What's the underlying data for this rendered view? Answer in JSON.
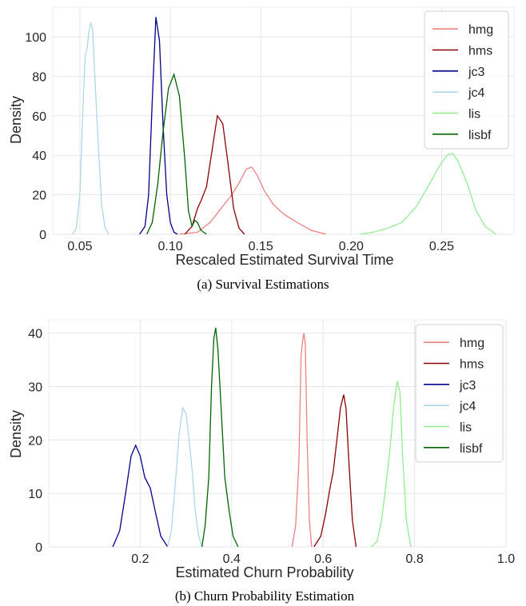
{
  "chart_data": [
    {
      "type": "line",
      "kind": "kde-density",
      "caption": "(a) Survival Estimations",
      "xlabel": "Rescaled Estimated Survival Time",
      "ylabel": "Density",
      "xlim": [
        0.035,
        0.29
      ],
      "ylim": [
        0,
        115
      ],
      "xticks": [
        0.05,
        0.1,
        0.15,
        0.2,
        0.25
      ],
      "xtick_labels": [
        "0.05",
        "0.10",
        "0.15",
        "0.20",
        "0.25"
      ],
      "yticks": [
        0,
        20,
        40,
        60,
        80,
        100
      ],
      "ytick_labels": [
        "0",
        "20",
        "40",
        "60",
        "80",
        "100"
      ],
      "grid": true,
      "legend_position": "top-right",
      "series": [
        {
          "name": "hmg",
          "color": "#f08080",
          "points": [
            [
              0.105,
              0
            ],
            [
              0.115,
              1
            ],
            [
              0.122,
              6
            ],
            [
              0.128,
              13
            ],
            [
              0.134,
              20
            ],
            [
              0.138,
              26
            ],
            [
              0.142,
              33
            ],
            [
              0.145,
              34
            ],
            [
              0.148,
              30
            ],
            [
              0.152,
              22
            ],
            [
              0.157,
              15
            ],
            [
              0.163,
              10
            ],
            [
              0.17,
              6
            ],
            [
              0.178,
              2
            ],
            [
              0.186,
              0
            ]
          ]
        },
        {
          "name": "hms",
          "color": "#8b0000",
          "points": [
            [
              0.108,
              0
            ],
            [
              0.112,
              4
            ],
            [
              0.115,
              13
            ],
            [
              0.117,
              17
            ],
            [
              0.12,
              24
            ],
            [
              0.123,
              42
            ],
            [
              0.126,
              60
            ],
            [
              0.129,
              56
            ],
            [
              0.132,
              35
            ],
            [
              0.135,
              13
            ],
            [
              0.138,
              3
            ],
            [
              0.141,
              0
            ]
          ]
        },
        {
          "name": "jc3",
          "color": "#00008b",
          "points": [
            [
              0.083,
              0
            ],
            [
              0.086,
              4
            ],
            [
              0.088,
              20
            ],
            [
              0.09,
              68
            ],
            [
              0.092,
              110
            ],
            [
              0.094,
              98
            ],
            [
              0.096,
              55
            ],
            [
              0.098,
              20
            ],
            [
              0.1,
              6
            ],
            [
              0.102,
              1
            ],
            [
              0.104,
              0
            ]
          ]
        },
        {
          "name": "jc4",
          "color": "#add8e6",
          "points": [
            [
              0.046,
              0
            ],
            [
              0.048,
              3
            ],
            [
              0.05,
              20
            ],
            [
              0.052,
              72
            ],
            [
              0.053,
              91
            ],
            [
              0.054,
              94
            ],
            [
              0.055,
              103
            ],
            [
              0.056,
              107
            ],
            [
              0.057,
              104
            ],
            [
              0.058,
              85
            ],
            [
              0.06,
              48
            ],
            [
              0.062,
              15
            ],
            [
              0.064,
              3
            ],
            [
              0.066,
              0
            ]
          ]
        },
        {
          "name": "lis",
          "color": "#90ee90",
          "points": [
            [
              0.205,
              0
            ],
            [
              0.212,
              1
            ],
            [
              0.22,
              3
            ],
            [
              0.228,
              6
            ],
            [
              0.236,
              14
            ],
            [
              0.243,
              25
            ],
            [
              0.249,
              35
            ],
            [
              0.253,
              40
            ],
            [
              0.256,
              41
            ],
            [
              0.259,
              37
            ],
            [
              0.264,
              26
            ],
            [
              0.269,
              12
            ],
            [
              0.274,
              4
            ],
            [
              0.28,
              0
            ]
          ]
        },
        {
          "name": "lisbf",
          "color": "#006400",
          "points": [
            [
              0.087,
              0
            ],
            [
              0.09,
              6
            ],
            [
              0.093,
              25
            ],
            [
              0.096,
              52
            ],
            [
              0.099,
              74
            ],
            [
              0.102,
              81
            ],
            [
              0.105,
              70
            ],
            [
              0.108,
              38
            ],
            [
              0.11,
              12
            ],
            [
              0.112,
              4
            ],
            [
              0.1135,
              7
            ],
            [
              0.115,
              6
            ],
            [
              0.117,
              2
            ],
            [
              0.12,
              0
            ]
          ]
        }
      ]
    },
    {
      "type": "line",
      "kind": "kde-density",
      "caption": "(b) Churn Probability Estimation",
      "xlabel": "Estimated Churn Probability",
      "ylabel": "Density",
      "xlim": [
        0.0,
        1.0
      ],
      "ylim": [
        0,
        42.5
      ],
      "xticks": [
        0.2,
        0.4,
        0.6,
        0.8,
        1.0
      ],
      "xtick_labels": [
        "0.2",
        "0.4",
        "0.6",
        "0.8",
        "1.0"
      ],
      "yticks": [
        0,
        10,
        20,
        30,
        40
      ],
      "ytick_labels": [
        "0",
        "10",
        "20",
        "30",
        "40"
      ],
      "grid": true,
      "legend_position": "top-right",
      "series": [
        {
          "name": "hmg",
          "color": "#f08080",
          "points": [
            [
              0.532,
              0
            ],
            [
              0.54,
              4
            ],
            [
              0.547,
              16
            ],
            [
              0.552,
              36
            ],
            [
              0.556,
              39
            ],
            [
              0.558,
              40
            ],
            [
              0.561,
              38
            ],
            [
              0.565,
              20
            ],
            [
              0.57,
              5
            ],
            [
              0.575,
              0
            ]
          ]
        },
        {
          "name": "hms",
          "color": "#8b0000",
          "points": [
            [
              0.58,
              0
            ],
            [
              0.595,
              2
            ],
            [
              0.605,
              6
            ],
            [
              0.615,
              11
            ],
            [
              0.622,
              14
            ],
            [
              0.63,
              20
            ],
            [
              0.638,
              26
            ],
            [
              0.645,
              28.5
            ],
            [
              0.65,
              26
            ],
            [
              0.657,
              15
            ],
            [
              0.664,
              5
            ],
            [
              0.672,
              0
            ]
          ]
        },
        {
          "name": "jc3",
          "color": "#00008b",
          "points": [
            [
              0.14,
              0
            ],
            [
              0.155,
              3
            ],
            [
              0.168,
              10
            ],
            [
              0.18,
              17
            ],
            [
              0.19,
              19
            ],
            [
              0.2,
              17
            ],
            [
              0.21,
              13
            ],
            [
              0.222,
              11
            ],
            [
              0.232,
              7
            ],
            [
              0.245,
              2
            ],
            [
              0.26,
              0
            ]
          ]
        },
        {
          "name": "jc4",
          "color": "#add8e6",
          "points": [
            [
              0.26,
              0
            ],
            [
              0.268,
              3
            ],
            [
              0.276,
              11
            ],
            [
              0.285,
              21
            ],
            [
              0.293,
              26
            ],
            [
              0.3,
              25
            ],
            [
              0.307,
              20
            ],
            [
              0.314,
              14
            ],
            [
              0.32,
              7
            ],
            [
              0.328,
              2
            ],
            [
              0.335,
              0
            ]
          ]
        },
        {
          "name": "lis",
          "color": "#90ee90",
          "points": [
            [
              0.705,
              0
            ],
            [
              0.718,
              1
            ],
            [
              0.728,
              5
            ],
            [
              0.738,
              12
            ],
            [
              0.746,
              18
            ],
            [
              0.754,
              26
            ],
            [
              0.762,
              31
            ],
            [
              0.768,
              29
            ],
            [
              0.774,
              17
            ],
            [
              0.782,
              5
            ],
            [
              0.792,
              0
            ]
          ]
        },
        {
          "name": "lisbf",
          "color": "#006400",
          "points": [
            [
              0.335,
              0
            ],
            [
              0.342,
              4
            ],
            [
              0.35,
              13
            ],
            [
              0.356,
              30
            ],
            [
              0.361,
              39
            ],
            [
              0.365,
              41
            ],
            [
              0.37,
              37
            ],
            [
              0.377,
              26
            ],
            [
              0.385,
              13
            ],
            [
              0.394,
              7
            ],
            [
              0.403,
              2
            ],
            [
              0.414,
              0
            ]
          ]
        }
      ]
    }
  ]
}
